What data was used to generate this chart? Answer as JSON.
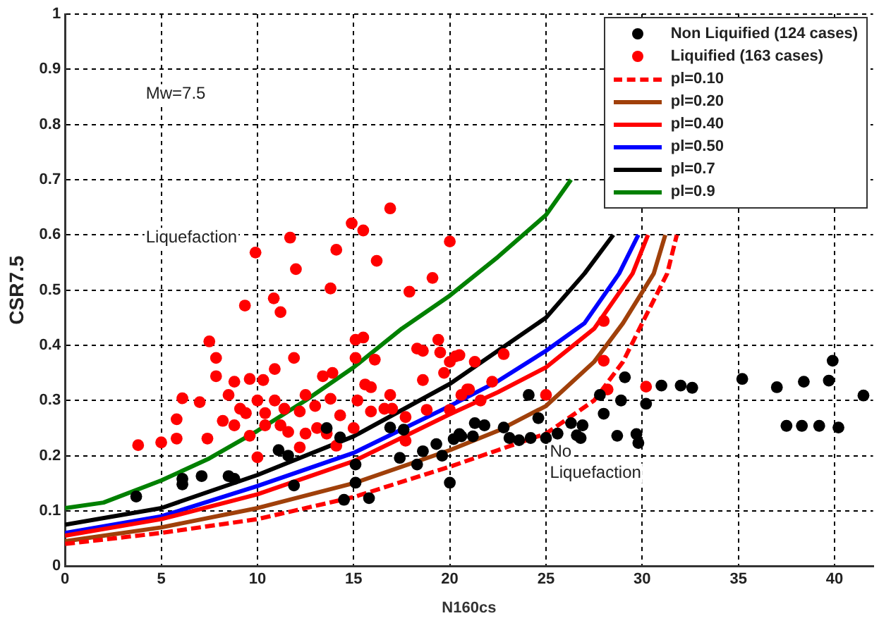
{
  "chart_data": {
    "type": "scatter",
    "xlabel": "N160cs",
    "ylabel": "CSR7.5",
    "annotations": [
      "Mw=7.5",
      "Liquefaction",
      "No\nLiquefaction"
    ],
    "xlim": [
      0,
      42
    ],
    "xticks": [
      0,
      5,
      10,
      15,
      20,
      25,
      30,
      35,
      40
    ],
    "ylim": [
      0,
      1
    ],
    "yticks": [
      0,
      0.1,
      0.2,
      0.3,
      0.4,
      0.5,
      0.6,
      0.7,
      0.8,
      0.9,
      1
    ],
    "grid": true,
    "legend": "top right",
    "series": [
      {
        "name": "Non Liquified (124 cases)",
        "type": "scatter",
        "color": "#000000",
        "marker": "circle",
        "x": [
          3.7,
          6.1,
          6.1,
          7.1,
          8.5,
          8.8,
          11.1,
          11.6,
          11.9,
          13.6,
          14.3,
          15.1,
          15.1,
          14.5,
          15.8,
          16.9,
          17.4,
          18.3,
          18.6,
          19.3,
          19.6,
          20.0,
          20.2,
          20.6,
          21.2,
          17.6,
          20.5,
          21.3,
          21.8,
          22.8,
          23.1,
          23.6,
          24.2,
          24.6,
          25.0,
          24.1,
          25.6,
          26.3,
          26.9,
          26.6,
          26.8,
          28.0,
          27.8,
          28.9,
          29.1,
          28.7,
          29.7,
          29.8,
          30.2,
          31.0,
          32.0,
          32.6,
          35.2,
          37.0,
          38.4,
          39.7,
          39.9,
          41.5,
          37.5,
          38.3,
          39.2,
          40.2
        ],
        "values": [
          0.126,
          0.158,
          0.148,
          0.163,
          0.163,
          0.158,
          0.21,
          0.2,
          0.146,
          0.25,
          0.233,
          0.184,
          0.151,
          0.12,
          0.123,
          0.251,
          0.196,
          0.184,
          0.208,
          0.221,
          0.2,
          0.151,
          0.23,
          0.235,
          0.235,
          0.247,
          0.239,
          0.259,
          0.255,
          0.251,
          0.232,
          0.228,
          0.232,
          0.268,
          0.232,
          0.31,
          0.24,
          0.259,
          0.255,
          0.237,
          0.232,
          0.276,
          0.31,
          0.3,
          0.342,
          0.236,
          0.239,
          0.223,
          0.294,
          0.327,
          0.327,
          0.323,
          0.339,
          0.324,
          0.334,
          0.336,
          0.372,
          0.309,
          0.254,
          0.254,
          0.254,
          0.251
        ]
      },
      {
        "name": "Liquified (163 cases)",
        "type": "scatter",
        "color": "#ff0000",
        "marker": "circle",
        "x": [
          9.9,
          11.7,
          12.0,
          13.8,
          14.1,
          14.9,
          15.5,
          16.2,
          16.9,
          17.9,
          19.1,
          20.0,
          9.35,
          10.85,
          11.2,
          7.5,
          7.85,
          7.85,
          3.8,
          5.0,
          5.8,
          5.8,
          6.1,
          7.0,
          7.4,
          8.8,
          8.5,
          9.6,
          10.3,
          10.9,
          11.9,
          10.0,
          9.1,
          9.4,
          10.4,
          10.9,
          11.4,
          12.2,
          12.5,
          13.0,
          13.4,
          13.9,
          13.8,
          14.3,
          15.1,
          15.5,
          15.1,
          16.1,
          15.6,
          15.9,
          15.2,
          16.9,
          17.0,
          18.3,
          18.6,
          19.4,
          19.5,
          19.7,
          20.0,
          20.3,
          21.0,
          18.8,
          18.6,
          12.5,
          11.6,
          13.1,
          13.6,
          11.2,
          10.4,
          9.6,
          8.8,
          8.2,
          10.0,
          12.2,
          14.1,
          15.0,
          15.9,
          16.6,
          17.7,
          17.7,
          20.0,
          20.6,
          20.5,
          21.3,
          22.8,
          20.9,
          22.2,
          21.6,
          25.0,
          28.0,
          28.0,
          28.2,
          30.2
        ],
        "values": [
          0.568,
          0.595,
          0.538,
          0.503,
          0.573,
          0.621,
          0.608,
          0.553,
          0.648,
          0.497,
          0.522,
          0.588,
          0.472,
          0.485,
          0.46,
          0.407,
          0.377,
          0.344,
          0.219,
          0.224,
          0.231,
          0.266,
          0.304,
          0.297,
          0.231,
          0.334,
          0.31,
          0.339,
          0.337,
          0.357,
          0.377,
          0.3,
          0.285,
          0.277,
          0.277,
          0.3,
          0.285,
          0.28,
          0.31,
          0.29,
          0.344,
          0.35,
          0.303,
          0.273,
          0.41,
          0.414,
          0.377,
          0.374,
          0.329,
          0.324,
          0.3,
          0.31,
          0.285,
          0.394,
          0.39,
          0.41,
          0.387,
          0.35,
          0.37,
          0.38,
          0.32,
          0.283,
          0.337,
          0.24,
          0.243,
          0.25,
          0.24,
          0.255,
          0.255,
          0.236,
          0.255,
          0.263,
          0.197,
          0.215,
          0.218,
          0.25,
          0.28,
          0.285,
          0.27,
          0.227,
          0.283,
          0.31,
          0.382,
          0.37,
          0.384,
          0.32,
          0.334,
          0.3,
          0.31,
          0.444,
          0.372,
          0.32,
          0.325
        ]
      },
      {
        "name": "pl=0.10",
        "type": "line",
        "color": "#ff0000",
        "marker": "none",
        "line_style": "dashed",
        "x": [
          0,
          5,
          10,
          15,
          20,
          22.5,
          25,
          27.5,
          29,
          30,
          31.3,
          31.8
        ],
        "values": [
          0.04,
          0.06,
          0.085,
          0.125,
          0.18,
          0.21,
          0.24,
          0.3,
          0.37,
          0.44,
          0.53,
          0.6
        ]
      },
      {
        "name": "pl=0.20",
        "type": "line",
        "color": "#a0400a",
        "marker": "none",
        "line_style": "solid",
        "x": [
          0,
          5,
          10,
          15,
          20,
          22.5,
          25,
          27.5,
          29,
          30.6,
          31.2
        ],
        "values": [
          0.045,
          0.07,
          0.105,
          0.15,
          0.21,
          0.245,
          0.29,
          0.37,
          0.44,
          0.53,
          0.6
        ]
      },
      {
        "name": "pl=0.40",
        "type": "line",
        "color": "#ff0000",
        "marker": "none",
        "line_style": "solid",
        "x": [
          0,
          5,
          10,
          15,
          20,
          22.5,
          25,
          27.5,
          29.5,
          30.3
        ],
        "values": [
          0.055,
          0.085,
          0.13,
          0.19,
          0.275,
          0.315,
          0.36,
          0.43,
          0.53,
          0.6
        ]
      },
      {
        "name": "pl=0.50",
        "type": "line",
        "color": "#0000ff",
        "marker": "none",
        "line_style": "solid",
        "x": [
          0,
          5,
          10,
          15,
          20,
          22.5,
          25,
          27,
          28.8,
          29.8
        ],
        "values": [
          0.06,
          0.09,
          0.145,
          0.205,
          0.29,
          0.335,
          0.39,
          0.44,
          0.53,
          0.6
        ]
      },
      {
        "name": "pl=0.7",
        "type": "line",
        "color": "#000000",
        "marker": "none",
        "line_style": "solid",
        "x": [
          0,
          5,
          10,
          15,
          20,
          22.5,
          25,
          27,
          28.5
        ],
        "values": [
          0.075,
          0.105,
          0.165,
          0.235,
          0.33,
          0.39,
          0.45,
          0.53,
          0.6
        ]
      },
      {
        "name": "pl=0.9",
        "type": "line",
        "color": "#008000",
        "marker": "none",
        "line_style": "solid",
        "x": [
          0,
          2,
          5,
          7.5,
          10,
          12.5,
          15,
          17.5,
          20,
          22.5,
          25,
          26.3
        ],
        "values": [
          0.105,
          0.115,
          0.155,
          0.195,
          0.245,
          0.3,
          0.36,
          0.43,
          0.49,
          0.56,
          0.636,
          0.7
        ]
      }
    ]
  }
}
